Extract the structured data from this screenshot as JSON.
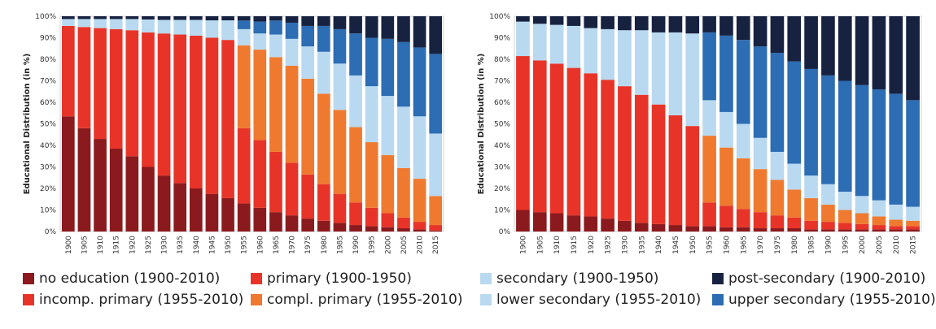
{
  "colors": {
    "no_education": "#8b1a1e",
    "primary": "#e83428",
    "secondary": "#b9d9f0",
    "post_secondary": "#172240",
    "incomp_primary": "#e83428",
    "compl_primary": "#ef7a2f",
    "lower_secondary": "#b9d9f0",
    "upper_secondary": "#2c6db4"
  },
  "legend": {
    "row1": [
      {
        "key": "no_education",
        "label": "no education (1900-2010)"
      },
      {
        "key": "primary",
        "label": "primary (1900-1950)"
      },
      {
        "key": "secondary",
        "label": "secondary (1900-1950)"
      },
      {
        "key": "post_secondary",
        "label": "post-secondary (1900-2010)"
      }
    ],
    "row2": [
      {
        "key": "incomp_primary",
        "label": "incomp. primary (1955-2010)"
      },
      {
        "key": "compl_primary",
        "label": "compl. primary (1955-2010)"
      },
      {
        "key": "lower_secondary",
        "label": "lower secondary (1955-2010)"
      },
      {
        "key": "upper_secondary",
        "label": "upper secondary (1955-2010)"
      }
    ]
  },
  "chart_data": [
    {
      "type": "bar",
      "stacked": true,
      "ylabel": "Educational Distribution (in %)",
      "ylim": [
        0,
        100
      ],
      "yticks": [
        "0%",
        "10%",
        "20%",
        "30%",
        "40%",
        "50%",
        "60%",
        "70%",
        "80%",
        "90%",
        "100%"
      ],
      "categories": [
        "1900",
        "1905",
        "1910",
        "1915",
        "1920",
        "1925",
        "1930",
        "1935",
        "1940",
        "1945",
        "1950",
        "1955",
        "1960",
        "1965",
        "1970",
        "1975",
        "1980",
        "1985",
        "1990",
        "1995",
        "2000",
        "2005",
        "2010",
        "2015"
      ],
      "series": [
        {
          "key": "no_education",
          "values": [
            53.5,
            48,
            43,
            38.5,
            35,
            30,
            26,
            22.5,
            20,
            17.5,
            15.5,
            13,
            11,
            9,
            7.5,
            6,
            5,
            4,
            3,
            2.5,
            2,
            1.5,
            1,
            0.5
          ]
        },
        {
          "key": "primary",
          "values": [
            42,
            47,
            51.5,
            55.5,
            58.5,
            62.5,
            66,
            69,
            71,
            72.5,
            73.5,
            0,
            0,
            0,
            0,
            0,
            0,
            0,
            0,
            0,
            0,
            0,
            0,
            0
          ]
        },
        {
          "key": "incomp_primary",
          "values": [
            0,
            0,
            0,
            0,
            0,
            0,
            0,
            0,
            0,
            0,
            0,
            35,
            31.5,
            28,
            24.5,
            20.5,
            17,
            13.5,
            10.5,
            8.5,
            6.5,
            5,
            3.5,
            2.5
          ]
        },
        {
          "key": "compl_primary",
          "values": [
            0,
            0,
            0,
            0,
            0,
            0,
            0,
            0,
            0,
            0,
            0,
            38.5,
            42,
            44,
            45,
            44.5,
            42,
            39,
            35,
            30.5,
            27,
            23,
            20,
            13.5
          ]
        },
        {
          "key": "secondary",
          "values": [
            3.2,
            3.7,
            4.2,
            4.7,
            5.2,
            6,
            6.3,
            6.8,
            7.3,
            8.1,
            9.1,
            0,
            0,
            0,
            0,
            0,
            0,
            0,
            0,
            0,
            0,
            0,
            0,
            0
          ]
        },
        {
          "key": "lower_secondary",
          "values": [
            0,
            0,
            0,
            0,
            0,
            0,
            0,
            0,
            0,
            0,
            0,
            7.5,
            7.5,
            10.5,
            12.5,
            15,
            19.5,
            21.5,
            24,
            26,
            27.5,
            28.5,
            29,
            29
          ]
        },
        {
          "key": "upper_secondary",
          "values": [
            0,
            0,
            0,
            0,
            0,
            0,
            0,
            0,
            0,
            0,
            0,
            4,
            5.5,
            6.5,
            7.5,
            9.5,
            12,
            16,
            19.5,
            22.5,
            26.5,
            30,
            32,
            37
          ]
        },
        {
          "key": "post_secondary",
          "values": [
            1.3,
            1.3,
            1.3,
            1.3,
            1.3,
            1.5,
            1.7,
            1.7,
            1.7,
            1.9,
            1.9,
            2,
            2.5,
            2,
            3,
            4.5,
            4.5,
            6,
            8,
            10,
            10.5,
            12,
            14.5,
            17.5
          ]
        }
      ]
    },
    {
      "type": "bar",
      "stacked": true,
      "ylabel": "Educational Distribution (in %)",
      "ylim": [
        0,
        100
      ],
      "yticks": [
        "0%",
        "10%",
        "20%",
        "30%",
        "40%",
        "50%",
        "60%",
        "70%",
        "80%",
        "90%",
        "100%"
      ],
      "categories": [
        "1900",
        "1905",
        "1910",
        "1915",
        "1920",
        "1925",
        "1930",
        "1935",
        "1940",
        "1945",
        "1950",
        "1955",
        "1960",
        "1965",
        "1970",
        "1975",
        "1980",
        "1985",
        "1990",
        "1995",
        "2000",
        "2005",
        "2010",
        "2015"
      ],
      "series": [
        {
          "key": "no_education",
          "values": [
            10,
            9,
            8.5,
            7.5,
            7,
            6,
            5,
            4,
            3.5,
            3,
            2.5,
            2.5,
            2,
            2,
            1.5,
            1.5,
            1.5,
            1,
            1,
            1,
            1,
            1,
            1,
            1
          ]
        },
        {
          "key": "primary",
          "values": [
            71.5,
            70.5,
            69.5,
            68.5,
            66.5,
            64.5,
            62.5,
            59.5,
            55.5,
            51,
            46.5,
            0,
            0,
            0,
            0,
            0,
            0,
            0,
            0,
            0,
            0,
            0,
            0,
            0
          ]
        },
        {
          "key": "incomp_primary",
          "values": [
            0,
            0,
            0,
            0,
            0,
            0,
            0,
            0,
            0,
            0,
            0,
            11,
            10,
            8.5,
            7.5,
            6,
            5,
            4,
            3.5,
            3,
            2.5,
            2,
            1.5,
            1.5
          ]
        },
        {
          "key": "compl_primary",
          "values": [
            0,
            0,
            0,
            0,
            0,
            0,
            0,
            0,
            0,
            0,
            0,
            31,
            27,
            23.5,
            20,
            16.5,
            13,
            10.5,
            8,
            6,
            5,
            4,
            3,
            2.5
          ]
        },
        {
          "key": "secondary",
          "values": [
            16,
            17,
            18,
            19.5,
            21,
            23.5,
            26,
            30,
            33.5,
            38.5,
            43,
            0,
            0,
            0,
            0,
            0,
            0,
            0,
            0,
            0,
            0,
            0,
            0,
            0
          ]
        },
        {
          "key": "lower_secondary",
          "values": [
            0,
            0,
            0,
            0,
            0,
            0,
            0,
            0,
            0,
            0,
            0,
            16.5,
            16.5,
            16,
            14.5,
            13,
            12,
            10.5,
            9.5,
            8.5,
            8,
            7.5,
            7,
            6.5
          ]
        },
        {
          "key": "upper_secondary",
          "values": [
            0,
            0,
            0,
            0,
            0,
            0,
            0,
            0,
            0,
            0,
            0,
            31.5,
            35.5,
            39,
            42.5,
            46,
            47.5,
            49.5,
            50.5,
            51.5,
            51.5,
            51.5,
            51.5,
            49.5
          ]
        },
        {
          "key": "post_secondary",
          "values": [
            2.5,
            3.5,
            4,
            4.5,
            5.5,
            6,
            6.5,
            6.5,
            7.5,
            7.5,
            8,
            7.5,
            9,
            11,
            14,
            17,
            21,
            24.5,
            27.5,
            30,
            32,
            34,
            36,
            39
          ]
        }
      ]
    }
  ]
}
